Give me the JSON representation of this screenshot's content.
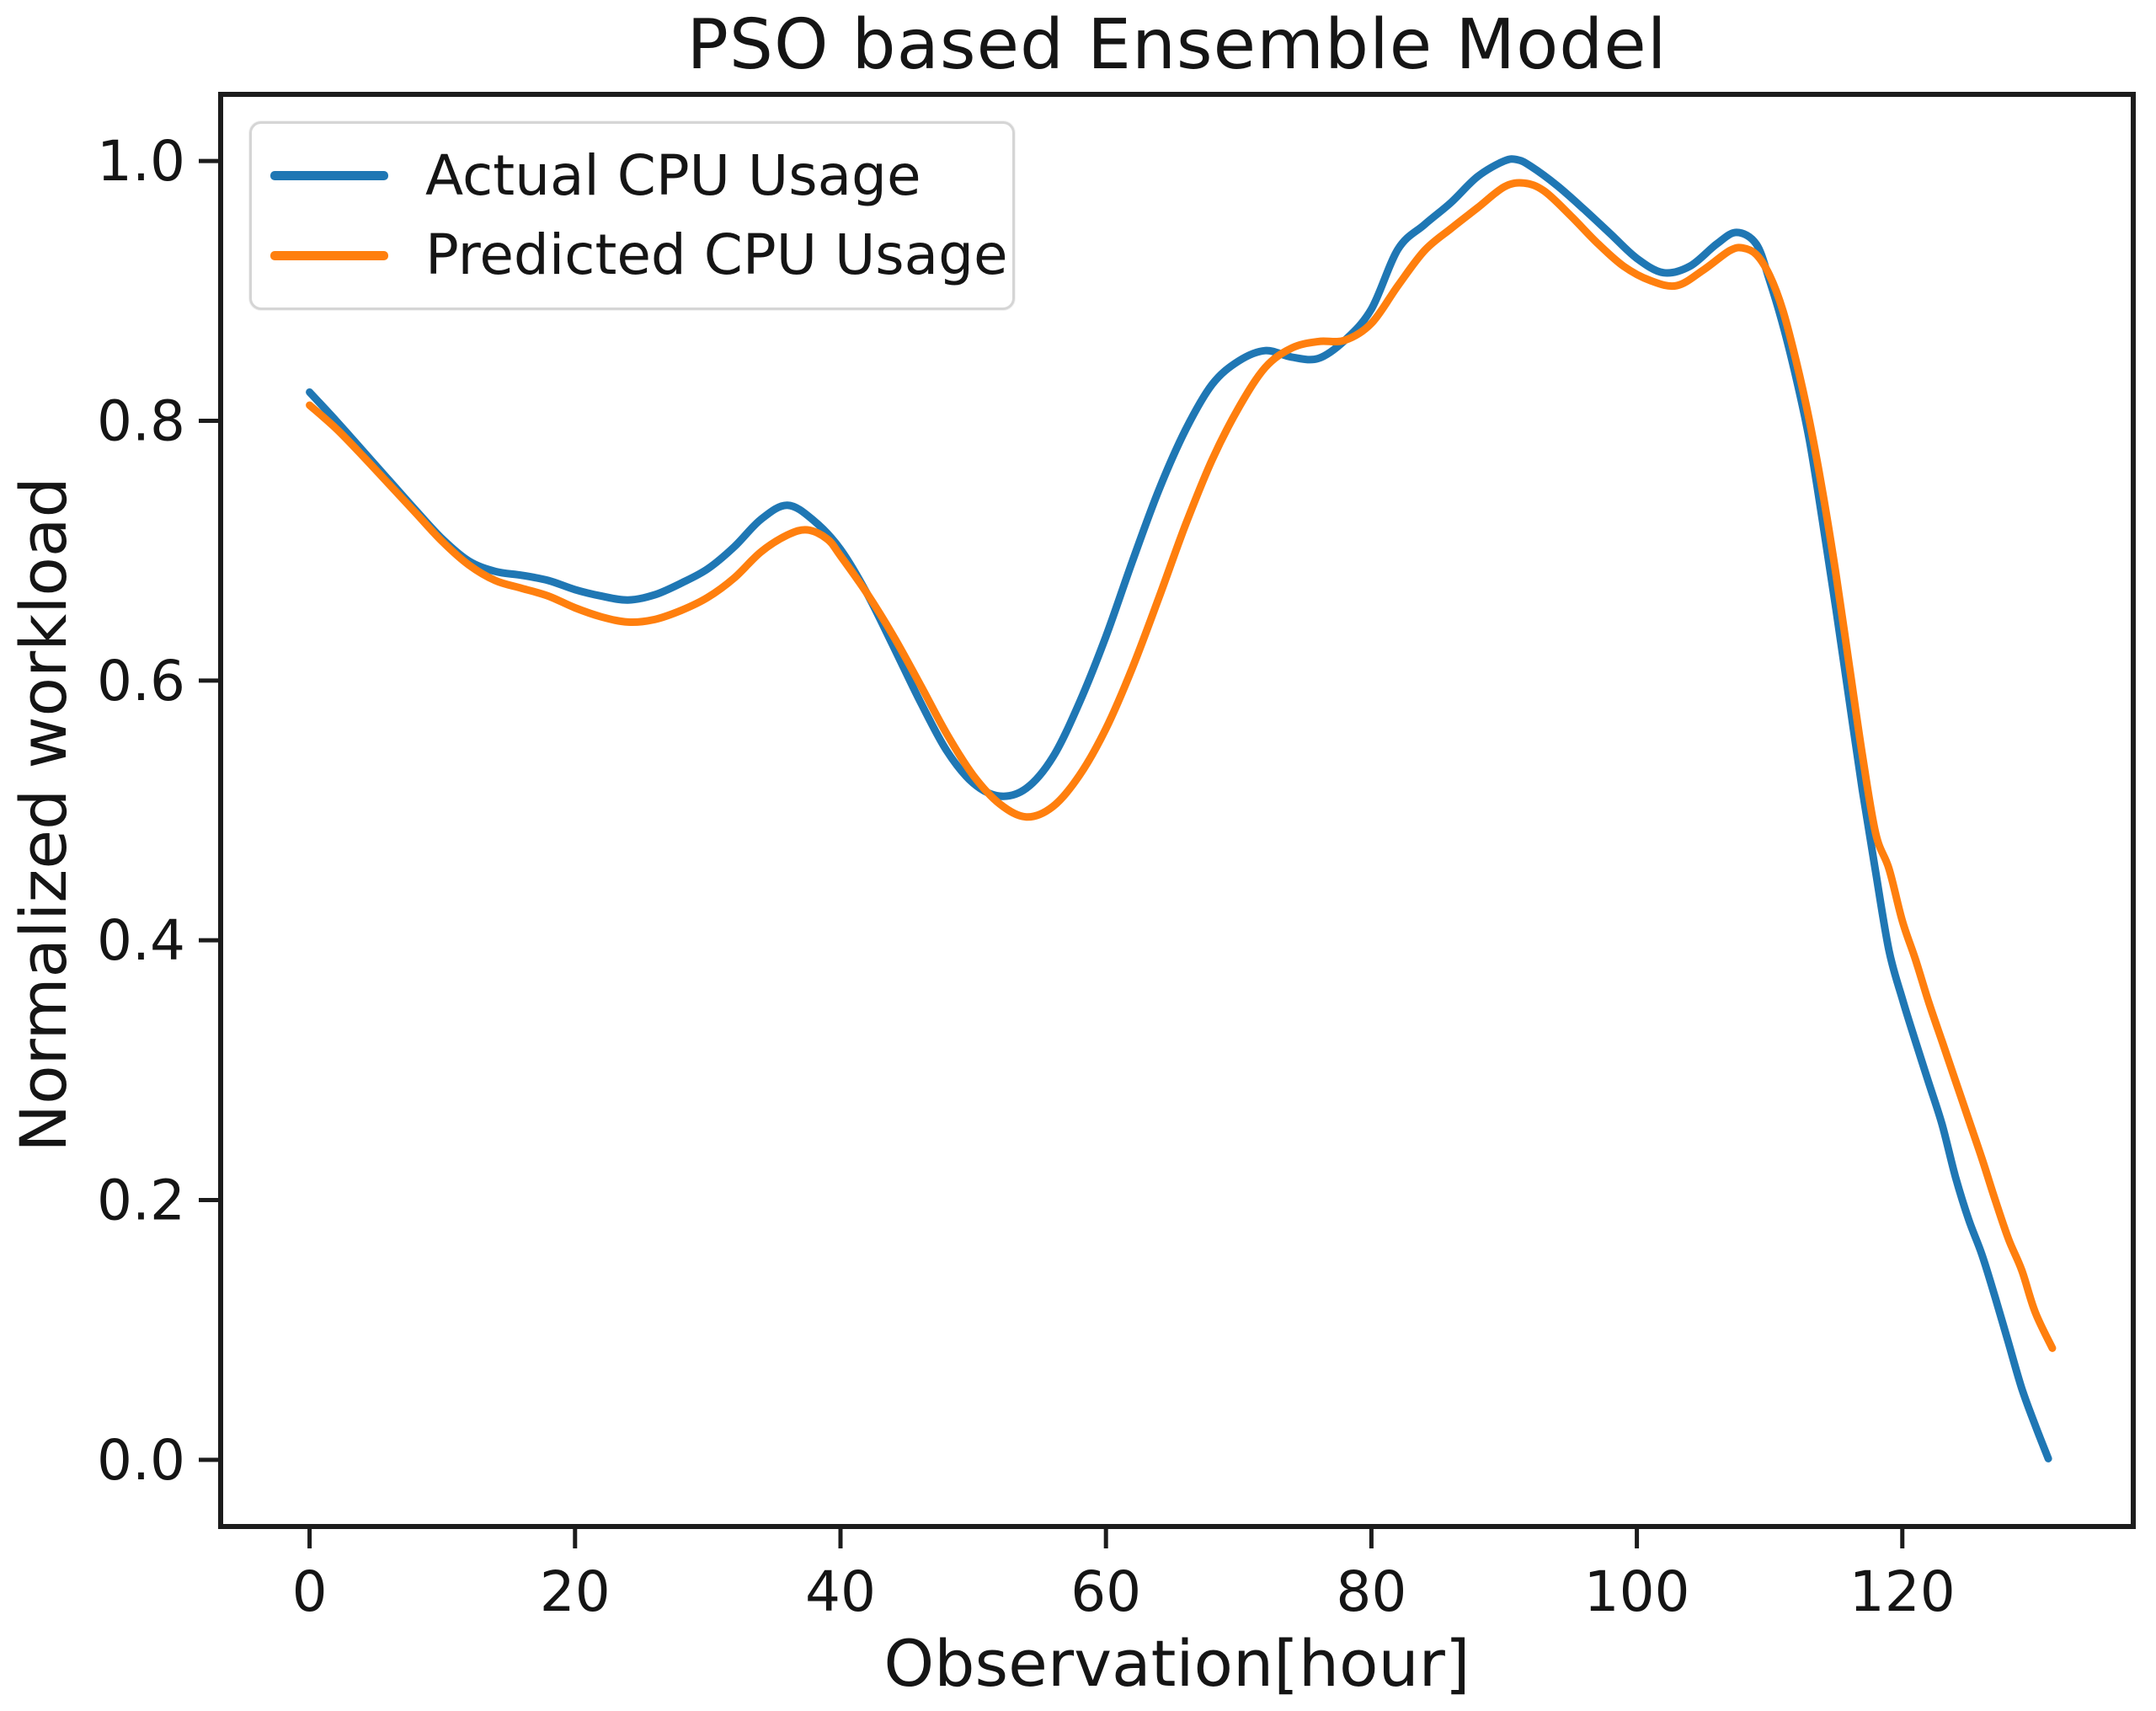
{
  "figure": {
    "title": "PSO based Ensemble Model",
    "xlabel": "Observation[hour]",
    "ylabel": "Normalized workload"
  },
  "legend": {
    "position": "upper left",
    "items": [
      {
        "label": "Actual CPU Usage",
        "color": "#1f77b4"
      },
      {
        "label": "Predicted CPU Usage",
        "color": "#ff7f0e"
      }
    ]
  },
  "colors": {
    "actual": "#1f77b4",
    "predicted": "#ff7f0e",
    "spine": "#1c1c1c",
    "text": "#151515",
    "background": "#ffffff"
  },
  "chart_data": {
    "type": "line",
    "title": "PSO based Ensemble Model",
    "xlabel": "Observation[hour]",
    "ylabel": "Normalized workload",
    "xlim": [
      -6.7,
      137.4
    ],
    "ylim": [
      -0.0513,
      1.0513
    ],
    "x_ticks": [
      0,
      20,
      40,
      60,
      80,
      100,
      120
    ],
    "x_tick_labels": [
      "0",
      "20",
      "40",
      "60",
      "80",
      "100",
      "120"
    ],
    "y_ticks": [
      0.0,
      0.2,
      0.4,
      0.6,
      0.8,
      1.0
    ],
    "y_tick_labels": [
      "0.0",
      "0.2",
      "0.4",
      "0.6",
      "0.8",
      "1.0"
    ],
    "grid": false,
    "legend_position": "upper left",
    "series": [
      {
        "name": "Actual CPU Usage",
        "color": "#1f77b4",
        "x": [
          0,
          2,
          4,
          6,
          8,
          10,
          12,
          14,
          16,
          18,
          20,
          22,
          24,
          26,
          28,
          30,
          32,
          34,
          36,
          38,
          40,
          42,
          44,
          46,
          48,
          50,
          52,
          54,
          56,
          58,
          60,
          62,
          64,
          66,
          68,
          70,
          72,
          74,
          76,
          78,
          80,
          82,
          84,
          86,
          88,
          90,
          91,
          92,
          94,
          96,
          98,
          100,
          102,
          104,
          106,
          107.5,
          109,
          110,
          111,
          112,
          113,
          114,
          115,
          116,
          117,
          118,
          119,
          120,
          121,
          122,
          123,
          124,
          125,
          126,
          127,
          128,
          129,
          130,
          131
        ],
        "y": [
          0.822,
          0.8,
          0.777,
          0.754,
          0.731,
          0.709,
          0.692,
          0.684,
          0.681,
          0.677,
          0.67,
          0.665,
          0.662,
          0.666,
          0.675,
          0.686,
          0.703,
          0.724,
          0.735,
          0.723,
          0.701,
          0.667,
          0.626,
          0.584,
          0.546,
          0.521,
          0.511,
          0.517,
          0.541,
          0.583,
          0.634,
          0.692,
          0.747,
          0.793,
          0.828,
          0.846,
          0.854,
          0.849,
          0.848,
          0.862,
          0.886,
          0.932,
          0.951,
          0.968,
          0.988,
          1.0,
          1.001,
          0.996,
          0.981,
          0.963,
          0.944,
          0.925,
          0.914,
          0.919,
          0.936,
          0.945,
          0.936,
          0.908,
          0.874,
          0.833,
          0.785,
          0.722,
          0.655,
          0.585,
          0.515,
          0.452,
          0.392,
          0.355,
          0.322,
          0.29,
          0.258,
          0.218,
          0.185,
          0.158,
          0.125,
          0.09,
          0.055,
          0.027,
          0.001
        ]
      },
      {
        "name": "Predicted CPU Usage",
        "color": "#ff7f0e",
        "x": [
          0,
          2,
          4,
          6,
          8,
          10,
          12,
          14,
          16,
          18,
          20,
          22,
          24,
          26,
          28,
          30,
          32,
          34,
          36,
          37.5,
          39,
          40,
          42,
          44,
          46,
          48,
          50,
          52,
          54,
          56,
          58,
          60,
          62,
          64,
          66,
          68,
          70,
          72,
          74,
          76,
          78,
          80,
          82,
          84,
          86,
          88,
          90,
          91.5,
          93,
          95,
          97,
          99,
          101,
          103,
          105,
          107,
          108,
          109,
          110,
          111,
          112,
          113,
          114,
          115,
          116,
          117,
          118,
          119,
          120,
          121,
          122,
          123,
          124,
          125,
          126,
          127,
          128,
          129,
          130,
          131.3
        ],
        "y": [
          0.812,
          0.794,
          0.773,
          0.751,
          0.729,
          0.707,
          0.689,
          0.677,
          0.671,
          0.665,
          0.656,
          0.649,
          0.645,
          0.647,
          0.654,
          0.664,
          0.679,
          0.699,
          0.712,
          0.716,
          0.709,
          0.696,
          0.667,
          0.634,
          0.597,
          0.559,
          0.527,
          0.505,
          0.495,
          0.503,
          0.527,
          0.563,
          0.61,
          0.664,
          0.72,
          0.77,
          0.81,
          0.841,
          0.856,
          0.861,
          0.862,
          0.875,
          0.904,
          0.931,
          0.948,
          0.964,
          0.98,
          0.983,
          0.977,
          0.958,
          0.937,
          0.919,
          0.908,
          0.904,
          0.916,
          0.931,
          0.933,
          0.928,
          0.912,
          0.885,
          0.846,
          0.8,
          0.745,
          0.682,
          0.612,
          0.542,
          0.482,
          0.455,
          0.415,
          0.385,
          0.352,
          0.322,
          0.292,
          0.262,
          0.232,
          0.2,
          0.17,
          0.146,
          0.114,
          0.086
        ]
      }
    ]
  }
}
